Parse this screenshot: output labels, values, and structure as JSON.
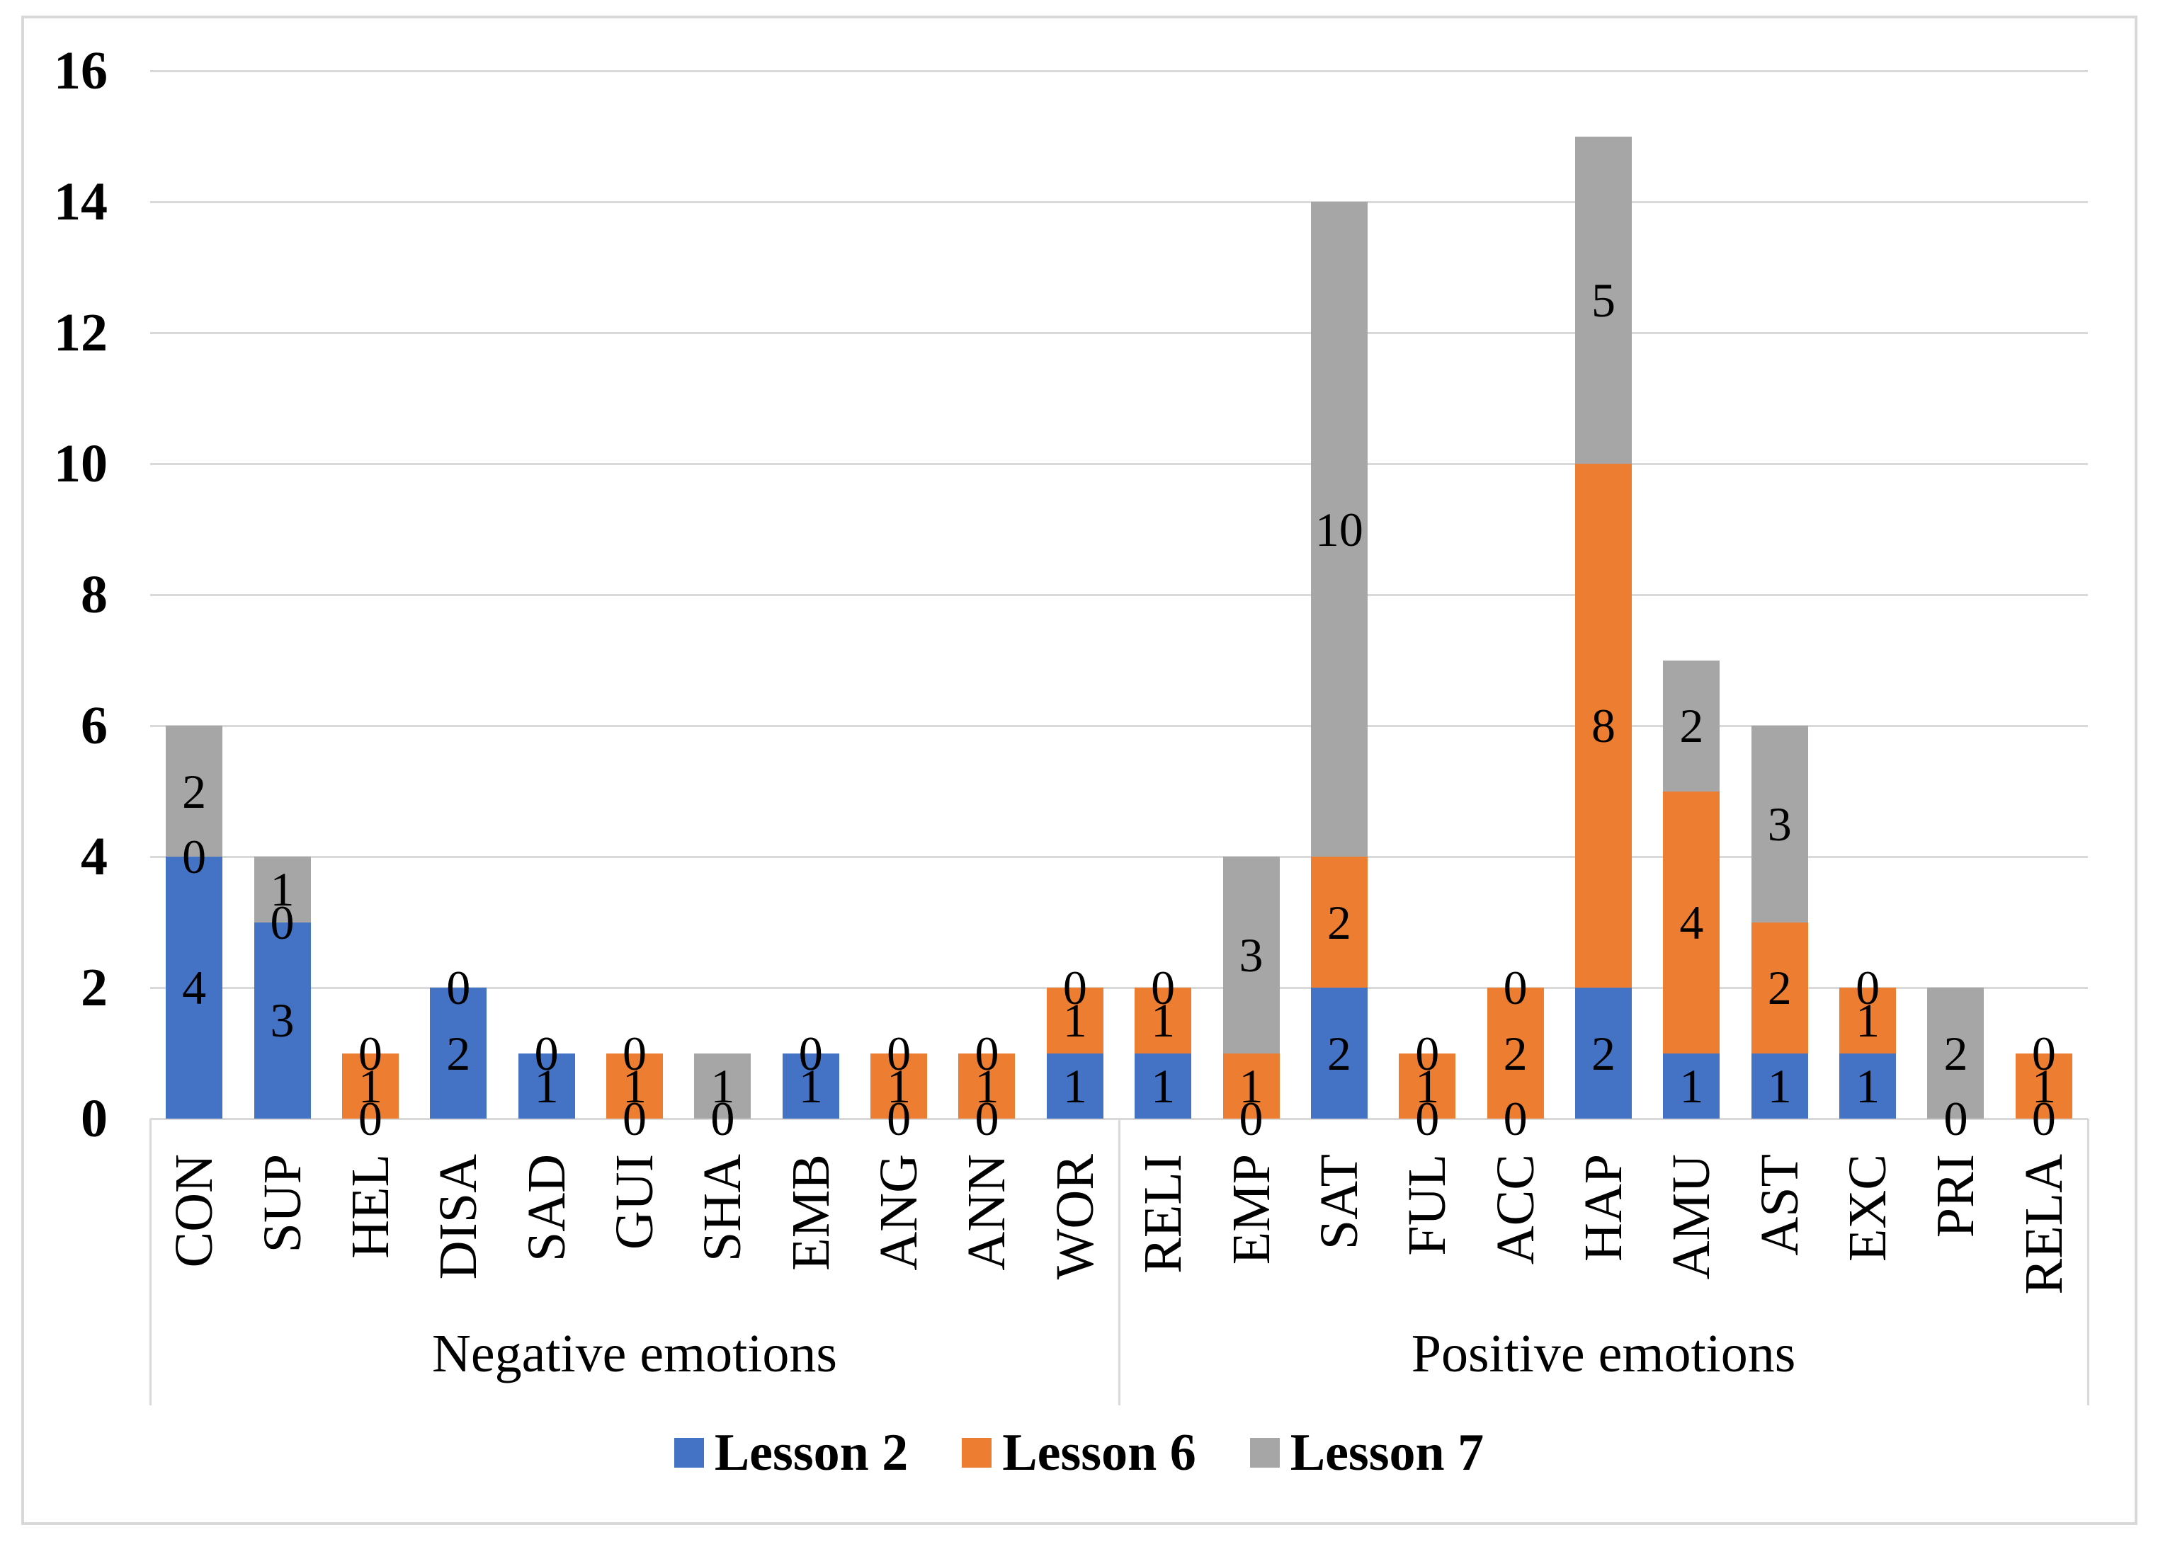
{
  "figure": {
    "background": "#ffffff",
    "border_color": "#d9d9d9",
    "gridline_color": "#d9d9d9"
  },
  "chart_data": {
    "type": "bar",
    "stacked": true,
    "title": "",
    "categories": [
      "CON",
      "SUP",
      "HEL",
      "DISA",
      "SAD",
      "GUI",
      "SHA",
      "EMB",
      "ANG",
      "ANN",
      "WOR",
      "RELI",
      "EMP",
      "SAT",
      "FUL",
      "ACC",
      "HAP",
      "AMU",
      "AST",
      "EXC",
      "PRI",
      "RELA"
    ],
    "groups": [
      {
        "label": "Negative emotions",
        "from": 0,
        "to": 10
      },
      {
        "label": "Positive emotions",
        "from": 11,
        "to": 21
      }
    ],
    "series": [
      {
        "name": "Lesson 2",
        "color": "#4472C4",
        "values": [
          4,
          3,
          0,
          2,
          1,
          0,
          0,
          1,
          0,
          0,
          1,
          1,
          0,
          2,
          0,
          0,
          2,
          1,
          1,
          1,
          0,
          0
        ]
      },
      {
        "name": "Lesson 6",
        "color": "#ED7D31",
        "values": [
          0,
          0,
          1,
          0,
          0,
          1,
          0,
          0,
          1,
          1,
          1,
          1,
          1,
          2,
          1,
          2,
          8,
          4,
          2,
          1,
          0,
          1
        ]
      },
      {
        "name": "Lesson 7",
        "color": "#A6A6A6",
        "values": [
          2,
          1,
          0,
          0,
          0,
          0,
          1,
          0,
          0,
          0,
          0,
          0,
          3,
          10,
          0,
          0,
          5,
          2,
          3,
          0,
          2,
          0
        ]
      }
    ],
    "y_axis": {
      "min": 0,
      "max": 16,
      "step": 2,
      "tick_labels": [
        "0",
        "2",
        "4",
        "6",
        "8",
        "10",
        "12",
        "14",
        "16"
      ]
    },
    "grid": true,
    "legend_position": "bottom",
    "data_labels": "center"
  }
}
